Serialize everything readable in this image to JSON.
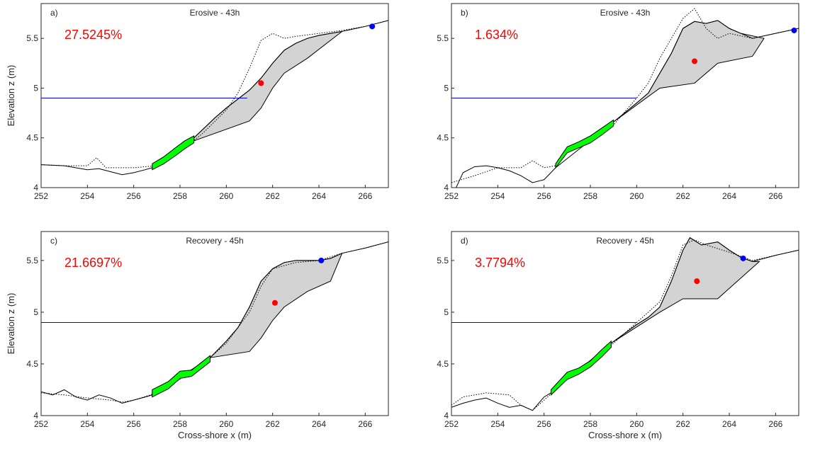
{
  "chart_data": [
    {
      "type": "line",
      "panel": "a)",
      "title": "Erosive - 43h",
      "annotation": "27.5245%",
      "ylabel": "Elevation z (m)",
      "xlim": [
        252,
        267
      ],
      "ylim": [
        4,
        5.85
      ],
      "xticks": [
        252,
        254,
        256,
        258,
        260,
        262,
        264,
        266
      ],
      "yticks": [
        4,
        4.5,
        5,
        5.5
      ],
      "water_level": {
        "x": [
          252,
          260.9
        ],
        "y": [
          4.9,
          4.9
        ],
        "color": "#0000ff"
      },
      "eroded_area": {
        "color": "#d3d3d3",
        "x": [
          258.6,
          259.5,
          260,
          261,
          261.5,
          262,
          262.5,
          263,
          263.5,
          264,
          265,
          263.5,
          262.5,
          262,
          261.5,
          261,
          258.6
        ],
        "y": [
          4.5,
          4.7,
          4.8,
          4.98,
          5.1,
          5.25,
          5.38,
          5.45,
          5.5,
          5.53,
          5.57,
          5.3,
          5.15,
          5.0,
          4.8,
          4.67,
          4.47
        ]
      },
      "profile": {
        "x": [
          252,
          253,
          254,
          254.5,
          255,
          255.5,
          256,
          256.5,
          256.8,
          258.6,
          259.5,
          260,
          261,
          261.5,
          262,
          262.5,
          263,
          263.5,
          264,
          265,
          266,
          267
        ],
        "y": [
          4.23,
          4.22,
          4.18,
          4.19,
          4.16,
          4.13,
          4.15,
          4.18,
          4.2,
          4.5,
          4.7,
          4.8,
          4.98,
          5.1,
          5.25,
          5.38,
          5.45,
          5.5,
          5.53,
          5.57,
          5.62,
          5.68
        ]
      },
      "previous_profile": {
        "x": [
          252,
          253,
          254,
          254.4,
          254.8,
          255.5,
          256,
          257,
          258,
          259,
          260,
          260.5,
          261,
          261.5,
          262,
          262.5,
          263,
          264,
          265,
          266,
          267
        ],
        "y": [
          4.23,
          4.22,
          4.22,
          4.3,
          4.2,
          4.2,
          4.2,
          4.22,
          4.36,
          4.55,
          4.78,
          4.95,
          5.2,
          5.48,
          5.55,
          5.5,
          5.52,
          5.55,
          5.58,
          5.62,
          5.68
        ]
      },
      "green_band": {
        "color": "#00ff00",
        "x": [
          256.8,
          257.3,
          257.8,
          258.2,
          258.6
        ],
        "y_low": [
          4.18,
          4.24,
          4.32,
          4.39,
          4.45
        ],
        "y_high": [
          4.24,
          4.31,
          4.4,
          4.47,
          4.52
        ]
      },
      "centroid": {
        "x": 261.5,
        "y": 5.05,
        "color": "#ff0000"
      },
      "marker": {
        "x": 266.3,
        "y": 5.62,
        "color": "#0000ff"
      }
    },
    {
      "type": "line",
      "panel": "b)",
      "title": "Erosive - 43h",
      "annotation": "1.634%",
      "xlim": [
        252,
        267
      ],
      "ylim": [
        4,
        5.85
      ],
      "xticks": [
        252,
        254,
        256,
        258,
        260,
        262,
        264,
        266
      ],
      "yticks": [
        4,
        4.5,
        5,
        5.5
      ],
      "water_level": {
        "x": [
          252,
          260
        ],
        "y": [
          4.9,
          4.9
        ],
        "color": "#0000ff"
      },
      "eroded_area": {
        "color": "#d3d3d3",
        "x": [
          259,
          260,
          260.5,
          261,
          261.5,
          262,
          262.5,
          263,
          263.5,
          264,
          264.5,
          265.5,
          265,
          263.5,
          262.5,
          261,
          259
        ],
        "y": [
          4.66,
          4.85,
          4.95,
          5.15,
          5.35,
          5.6,
          5.67,
          5.65,
          5.68,
          5.6,
          5.55,
          5.5,
          5.32,
          5.25,
          5.05,
          5.0,
          4.66
        ]
      },
      "profile": {
        "x": [
          252.2,
          252.5,
          253,
          253.5,
          254,
          254.5,
          255,
          255.5,
          256,
          256.5,
          259,
          260,
          260.5,
          261,
          261.5,
          262,
          262.5,
          263,
          263.5,
          264,
          264.5,
          265,
          266,
          267
        ],
        "y": [
          4.0,
          4.15,
          4.21,
          4.22,
          4.2,
          4.17,
          4.12,
          4.05,
          4.08,
          4.2,
          4.66,
          4.85,
          4.95,
          5.15,
          5.35,
          5.6,
          5.67,
          5.65,
          5.68,
          5.6,
          5.55,
          5.5,
          5.55,
          5.6
        ]
      },
      "previous_profile": {
        "x": [
          252,
          253,
          254,
          255,
          255.5,
          256,
          256.5,
          257,
          258,
          259,
          260,
          260.5,
          261,
          261.5,
          262,
          262.5,
          263,
          263.5,
          264,
          265,
          266,
          267
        ],
        "y": [
          4.05,
          4.12,
          4.2,
          4.2,
          4.27,
          4.2,
          4.22,
          4.35,
          4.45,
          4.63,
          4.9,
          5.05,
          5.3,
          5.5,
          5.7,
          5.8,
          5.6,
          5.5,
          5.55,
          5.5,
          5.55,
          5.6
        ]
      },
      "green_band": {
        "color": "#00ff00",
        "x": [
          256.5,
          257,
          257.5,
          258,
          258.5,
          259
        ],
        "y_low": [
          4.2,
          4.35,
          4.4,
          4.45,
          4.53,
          4.62
        ],
        "y_high": [
          4.24,
          4.41,
          4.46,
          4.52,
          4.6,
          4.68
        ]
      },
      "centroid": {
        "x": 262.5,
        "y": 5.27,
        "color": "#ff0000"
      },
      "marker": {
        "x": 266.8,
        "y": 5.58,
        "color": "#0000ff"
      }
    },
    {
      "type": "line",
      "panel": "c)",
      "title": "Recovery - 45h",
      "annotation": "21.6697%",
      "ylabel": "Elevation z (m)",
      "xlabel": "Cross-shore x (m)",
      "xlim": [
        252,
        267
      ],
      "ylim": [
        4,
        5.78
      ],
      "xticks": [
        252,
        254,
        256,
        258,
        260,
        262,
        264,
        266
      ],
      "yticks": [
        4,
        4.5,
        5,
        5.5
      ],
      "water_level": {
        "x": [
          252,
          260.6
        ],
        "y": [
          4.9,
          4.9
        ],
        "color": "#0000ff"
      },
      "eroded_area": {
        "color": "#d3d3d3",
        "x": [
          259.3,
          260,
          260.5,
          261,
          261.5,
          262,
          262.5,
          263,
          264,
          264.5,
          265,
          264.5,
          263.5,
          262.5,
          262,
          261.5,
          261,
          259.3
        ],
        "y": [
          4.56,
          4.72,
          4.85,
          5.05,
          5.3,
          5.42,
          5.48,
          5.5,
          5.5,
          5.52,
          5.57,
          5.3,
          5.2,
          5.05,
          4.92,
          4.75,
          4.62,
          4.56
        ]
      },
      "profile": {
        "x": [
          252,
          252.5,
          253,
          253.5,
          254,
          254.5,
          255,
          255.5,
          256,
          256.5,
          256.8,
          259.3,
          260,
          260.5,
          261,
          261.5,
          262,
          262.5,
          263,
          264,
          264.5,
          265,
          266,
          267
        ],
        "y": [
          4.23,
          4.2,
          4.25,
          4.18,
          4.15,
          4.2,
          4.17,
          4.12,
          4.15,
          4.18,
          4.2,
          4.56,
          4.72,
          4.85,
          5.05,
          5.3,
          5.42,
          5.48,
          5.5,
          5.5,
          5.52,
          5.57,
          5.62,
          5.68
        ]
      },
      "previous_profile": {
        "x": [
          252,
          253,
          254,
          255,
          255.5,
          256,
          257,
          258,
          259,
          260,
          260.5,
          261,
          261.5,
          262,
          263,
          264,
          265,
          266,
          267
        ],
        "y": [
          4.22,
          4.2,
          4.17,
          4.15,
          4.13,
          4.15,
          4.22,
          4.35,
          4.5,
          4.7,
          4.85,
          5.0,
          5.25,
          5.42,
          5.48,
          5.5,
          5.57,
          5.62,
          5.68
        ]
      },
      "green_band": {
        "color": "#00ff00",
        "x": [
          256.8,
          257.5,
          258,
          258.5,
          259.3
        ],
        "y_low": [
          4.18,
          4.26,
          4.36,
          4.38,
          4.52
        ],
        "y_high": [
          4.25,
          4.33,
          4.43,
          4.44,
          4.58
        ]
      },
      "centroid": {
        "x": 262.1,
        "y": 5.09,
        "color": "#ff0000"
      },
      "marker": {
        "x": 264.1,
        "y": 5.5,
        "color": "#0000ff"
      }
    },
    {
      "type": "line",
      "panel": "d)",
      "title": "Recovery - 45h",
      "annotation": "3.7794%",
      "xlabel": "Cross-shore x (m)",
      "xlim": [
        252,
        267
      ],
      "ylim": [
        4,
        5.78
      ],
      "xticks": [
        252,
        254,
        256,
        258,
        260,
        262,
        264,
        266
      ],
      "yticks": [
        4,
        4.5,
        5,
        5.5
      ],
      "water_level": {
        "x": [
          252,
          260
        ],
        "y": [
          4.9,
          4.9
        ],
        "color": "#0000ff"
      },
      "eroded_area": {
        "color": "#d3d3d3",
        "x": [
          258.9,
          260,
          260.5,
          261,
          261.5,
          262,
          262.3,
          262.8,
          263.5,
          264,
          264.5,
          265,
          265.3,
          263.5,
          262,
          261,
          258.9
        ],
        "y": [
          4.7,
          4.88,
          4.95,
          5.05,
          5.3,
          5.6,
          5.72,
          5.65,
          5.68,
          5.6,
          5.53,
          5.49,
          5.49,
          5.13,
          5.13,
          5.0,
          4.7
        ]
      },
      "profile": {
        "x": [
          252,
          252.5,
          253,
          253.5,
          254,
          254.5,
          255,
          255.5,
          256,
          256.3,
          258.9,
          260,
          260.5,
          261,
          261.5,
          262,
          262.3,
          262.8,
          263.5,
          264,
          264.5,
          265,
          266,
          267
        ],
        "y": [
          4.08,
          4.12,
          4.15,
          4.17,
          4.12,
          4.08,
          4.1,
          4.05,
          4.18,
          4.22,
          4.7,
          4.88,
          4.95,
          5.05,
          5.3,
          5.6,
          5.72,
          5.65,
          5.68,
          5.6,
          5.53,
          5.49,
          5.55,
          5.6
        ]
      },
      "previous_profile": {
        "x": [
          252,
          252.5,
          253.5,
          254.5,
          255,
          255.5,
          256,
          257,
          258,
          259,
          260,
          261,
          261.5,
          262,
          262.5,
          263,
          264,
          265,
          266,
          267
        ],
        "y": [
          4.1,
          4.18,
          4.22,
          4.2,
          4.1,
          4.05,
          4.15,
          4.35,
          4.5,
          4.7,
          4.9,
          5.1,
          5.35,
          5.65,
          5.7,
          5.65,
          5.58,
          5.5,
          5.55,
          5.6
        ]
      },
      "green_band": {
        "color": "#00ff00",
        "x": [
          256.3,
          257,
          257.5,
          258,
          258.5,
          258.9
        ],
        "y_low": [
          4.2,
          4.35,
          4.4,
          4.47,
          4.57,
          4.66
        ],
        "y_high": [
          4.25,
          4.42,
          4.46,
          4.53,
          4.64,
          4.72
        ]
      },
      "centroid": {
        "x": 262.6,
        "y": 5.3,
        "color": "#ff0000"
      },
      "marker": {
        "x": 264.6,
        "y": 5.52,
        "color": "#0000ff"
      }
    }
  ]
}
